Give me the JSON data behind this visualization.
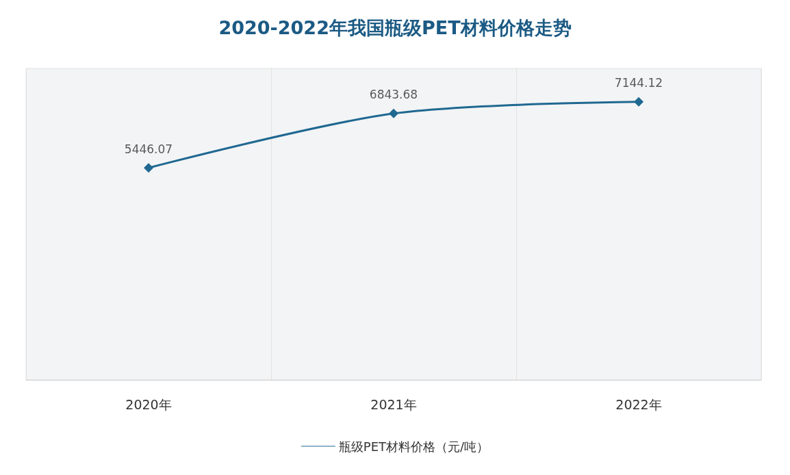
{
  "chart_data": {
    "type": "line",
    "title": "2020-2022年我国瓶级PET材料价格走势",
    "categories": [
      "2020年",
      "2021年",
      "2022年"
    ],
    "series": [
      {
        "name": "瓶级PET材料价格（元/吨）",
        "color": "#1f6891",
        "values": [
          5446.07,
          6843.68,
          7144.12
        ]
      }
    ],
    "data_labels": true,
    "marker": "diamond",
    "line_style": "solid",
    "grid": "x",
    "legend": "bottom"
  }
}
